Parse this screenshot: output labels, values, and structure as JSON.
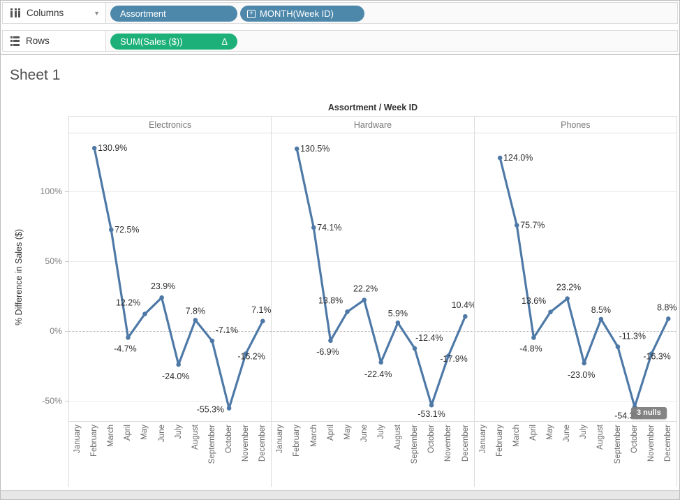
{
  "shelves": {
    "columns": {
      "label": "Columns",
      "caret": "▼",
      "pills": [
        {
          "text": "Assortment"
        },
        {
          "text": "MONTH(Week ID)",
          "prefix_icon": "plus-box-icon",
          "prefix_glyph": "+"
        }
      ]
    },
    "rows": {
      "label": "Rows",
      "pills": [
        {
          "text": "SUM(Sales ($))",
          "suffix_icon": "delta-icon",
          "suffix_glyph": "Δ"
        }
      ]
    }
  },
  "sheet": {
    "title": "Sheet 1"
  },
  "colors": {
    "pill_dimension": "#4d88ab",
    "pill_measure": "#1db179",
    "line": "#4e79a7",
    "label_text": "#2e2e2e"
  },
  "chart_data": {
    "type": "line",
    "title": "Assortment / Week ID",
    "ylabel": "% Difference in Sales ($)",
    "xlabel": "",
    "grid": true,
    "ylim": [
      -65,
      141.5
    ],
    "legend": "none",
    "categories": [
      "January",
      "February",
      "March",
      "April",
      "May",
      "June",
      "July",
      "August",
      "September",
      "October",
      "November",
      "December"
    ],
    "y_ticks": [
      {
        "label": "100%",
        "value": 100
      },
      {
        "label": "50%",
        "value": 50
      },
      {
        "label": "0%",
        "value": 0
      },
      {
        "label": "-50%",
        "value": -50
      }
    ],
    "series": [
      {
        "name": "Electronics",
        "values": [
          null,
          130.9,
          72.5,
          -4.7,
          12.2,
          23.9,
          -24.0,
          7.8,
          -7.1,
          -55.3,
          -16.2,
          7.1
        ],
        "labels": [
          null,
          "130.9%",
          "72.5%",
          "-4.7%",
          "12.2%",
          "23.9%",
          "-24.0%",
          "7.8%",
          "-7.1%",
          "-55.3%",
          "-16.2%",
          "7.1%"
        ]
      },
      {
        "name": "Hardware",
        "values": [
          null,
          130.5,
          74.1,
          -6.9,
          13.8,
          22.2,
          -22.4,
          5.9,
          -12.4,
          -53.1,
          -17.9,
          10.4
        ],
        "labels": [
          null,
          "130.5%",
          "74.1%",
          "-6.9%",
          "13.8%",
          "22.2%",
          "-22.4%",
          "5.9%",
          "-12.4%",
          "-53.1%",
          "-17.9%",
          "10.4%"
        ]
      },
      {
        "name": "Phones",
        "values": [
          null,
          124.0,
          75.7,
          -4.8,
          13.6,
          23.2,
          -23.0,
          8.5,
          -11.3,
          -54.3,
          -16.3,
          8.8
        ],
        "labels": [
          null,
          "124.0%",
          "75.7%",
          "-4.8%",
          "13.6%",
          "23.2%",
          "-23.0%",
          "8.5%",
          "-11.3%",
          "-54.3%",
          "-16.3%",
          "8.8%"
        ]
      }
    ],
    "null_indicator": "3 nulls"
  }
}
